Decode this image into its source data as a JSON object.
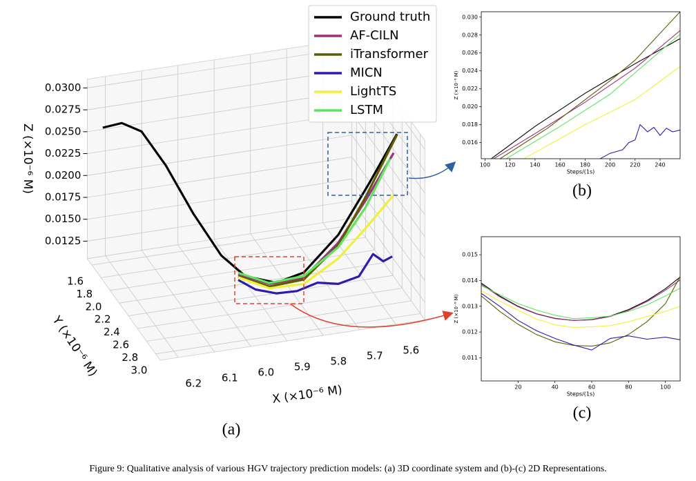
{
  "caption": "Figure 9: Qualitative analysis of various HGV trajectory prediction models: (a) 3D coordinate system and (b)-(c) 2D Representations.",
  "chart_data": [
    {
      "type": "line3d",
      "panel_label": "(a)",
      "xlabel": "X (×10⁻⁶ M)",
      "ylabel": "Y (×10⁻⁶ M)",
      "zlabel": "Z (×10⁻⁶ M)",
      "xlim": [
        5.52,
        6.25
      ],
      "ylim": [
        1.5,
        3.1
      ],
      "zlim": [
        0.0105,
        0.031
      ],
      "xticks": [
        5.6,
        5.7,
        5.8,
        5.9,
        {
          "value": 6.0,
          "label": "6.0"
        },
        6.1,
        6.2
      ],
      "yticks": [
        1.6,
        1.8,
        {
          "value": 2.0,
          "label": "2.0"
        },
        2.2,
        2.4,
        2.6,
        2.8,
        {
          "value": 3.0,
          "label": "3.0"
        }
      ],
      "zticks": [
        0.0125,
        {
          "value": 0.015,
          "label": "0.0150"
        },
        0.0175,
        {
          "value": 0.02,
          "label": "0.0200"
        },
        0.0225,
        {
          "value": 0.025,
          "label": "0.0250"
        },
        0.0275,
        {
          "value": 0.03,
          "label": "0.0300"
        }
      ],
      "grid": true,
      "legend": "upper right",
      "series": [
        {
          "name": "Ground truth",
          "color": "#000000",
          "x": [
            6.22,
            6.18,
            6.138,
            6.096,
            6.045,
            5.994,
            5.94,
            5.867,
            5.791,
            5.696,
            5.61,
            5.534
          ],
          "y": [
            1.6,
            1.7,
            1.8,
            2.0,
            2.2,
            2.4,
            2.5,
            2.6,
            2.6,
            2.6,
            2.6,
            2.6
          ],
          "z": [
            0.026,
            0.027,
            0.0265,
            0.0238,
            0.0194,
            0.0158,
            0.0138,
            0.0133,
            0.014,
            0.0177,
            0.0231,
            0.0282
          ]
        },
        {
          "name": "AF-CILN",
          "color": "#a0307f",
          "x": [
            5.972,
            5.886,
            5.791,
            5.696,
            5.62,
            5.543
          ],
          "y": [
            2.6,
            2.6,
            2.6,
            2.6,
            2.6,
            2.6
          ],
          "z": [
            0.0149,
            0.0133,
            0.0134,
            0.0168,
            0.0212,
            0.0261
          ]
        },
        {
          "name": "iTransformer",
          "color": "#5c5c00",
          "x": [
            5.972,
            5.886,
            5.791,
            5.696,
            5.62,
            5.534
          ],
          "y": [
            2.6,
            2.6,
            2.6,
            2.6,
            2.6,
            2.6
          ],
          "z": [
            0.0147,
            0.013,
            0.0132,
            0.0165,
            0.0216,
            0.0281
          ]
        },
        {
          "name": "MICN",
          "color": "#2d1bb0",
          "x": [
            5.972,
            5.924,
            5.867,
            5.81,
            5.753,
            5.696,
            5.639,
            5.6,
            5.572,
            5.547
          ],
          "y": [
            2.6,
            2.6,
            2.6,
            2.6,
            2.6,
            2.6,
            2.6,
            2.6,
            2.6,
            2.6
          ],
          "z": [
            0.0143,
            0.0129,
            0.0121,
            0.012,
            0.0126,
            0.0121,
            0.0126,
            0.0149,
            0.0139,
            0.0143
          ]
        },
        {
          "name": "LightTS",
          "color": "#f0f03a",
          "x": [
            5.972,
            5.886,
            5.791,
            5.696,
            5.62,
            5.543
          ],
          "y": [
            2.6,
            2.6,
            2.6,
            2.6,
            2.6,
            2.6
          ],
          "z": [
            0.0146,
            0.0128,
            0.0127,
            0.015,
            0.018,
            0.0213
          ]
        },
        {
          "name": "LSTM",
          "color": "#5ce65c",
          "x": [
            5.972,
            5.886,
            5.791,
            5.696,
            5.62,
            5.553
          ],
          "y": [
            2.6,
            2.6,
            2.6,
            2.6,
            2.6,
            2.6
          ],
          "z": [
            0.0151,
            0.0134,
            0.0136,
            0.0163,
            0.0204,
            0.0255
          ]
        }
      ]
    },
    {
      "type": "line",
      "panel_label": "(b)",
      "xlabel": "Steps/(1s)",
      "ylabel": "Z (×10⁻⁶ M)",
      "xlim": [
        97,
        256
      ],
      "ylim": [
        0.0142,
        0.0306
      ],
      "xticks": [
        100,
        120,
        140,
        160,
        180,
        200,
        220,
        240
      ],
      "yticks": [
        0.016,
        0.018,
        {
          "value": 0.02,
          "label": "0.020"
        },
        0.022,
        0.024,
        0.026,
        0.028,
        {
          "value": 0.03,
          "label": "0.030"
        }
      ],
      "series": [
        {
          "name": "Ground truth",
          "color": "#000000",
          "x": [
            105,
            140,
            180,
            220,
            256
          ],
          "values": [
            0.0142,
            0.0178,
            0.0215,
            0.0248,
            0.0276
          ]
        },
        {
          "name": "AF-CILN",
          "color": "#a0307f",
          "x": [
            107,
            140,
            180,
            220,
            256
          ],
          "values": [
            0.0142,
            0.017,
            0.0205,
            0.0243,
            0.0285
          ]
        },
        {
          "name": "iTransformer",
          "color": "#5c5c00",
          "x": [
            112,
            150,
            200,
            220,
            256
          ],
          "values": [
            0.0142,
            0.0176,
            0.0229,
            0.0252,
            0.0306
          ]
        },
        {
          "name": "MICN",
          "color": "#2d1bb0",
          "x": [
            192,
            200,
            210,
            215,
            220,
            224,
            230,
            235,
            240,
            245,
            250,
            256
          ],
          "values": [
            0.0142,
            0.0148,
            0.0152,
            0.016,
            0.0163,
            0.018,
            0.0172,
            0.0177,
            0.0168,
            0.0176,
            0.0172,
            0.0174
          ]
        },
        {
          "name": "LightTS",
          "color": "#f0f03a",
          "x": [
            131,
            180,
            220,
            256
          ],
          "values": [
            0.0142,
            0.018,
            0.0208,
            0.0245
          ]
        },
        {
          "name": "LSTM",
          "color": "#5ce65c",
          "x": [
            117,
            160,
            200,
            256
          ],
          "values": [
            0.0142,
            0.0178,
            0.0214,
            0.0281
          ]
        }
      ]
    },
    {
      "type": "line",
      "panel_label": "(c)",
      "xlabel": "Steps/(1s)",
      "ylabel": "Z (×10⁻⁶ M)",
      "xlim": [
        0,
        108
      ],
      "ylim": [
        0.0101,
        0.0157
      ],
      "xticks": [
        20,
        40,
        60,
        80,
        100
      ],
      "yticks": [
        0.011,
        0.012,
        0.013,
        0.014,
        0.015
      ],
      "series": [
        {
          "name": "Ground truth",
          "color": "#000000",
          "x": [
            0,
            10,
            20,
            30,
            40,
            50,
            60,
            70,
            80,
            90,
            100,
            108
          ],
          "values": [
            0.0139,
            0.0134,
            0.013,
            0.01271,
            0.01253,
            0.01245,
            0.01248,
            0.01262,
            0.01287,
            0.01322,
            0.01368,
            0.01413
          ]
        },
        {
          "name": "AF-CILN",
          "color": "#a0307f",
          "x": [
            0,
            10,
            20,
            30,
            40,
            50,
            60,
            70,
            80,
            90,
            100,
            108
          ],
          "values": [
            0.01385,
            0.01337,
            0.01298,
            0.0127,
            0.01252,
            0.01245,
            0.01247,
            0.0126,
            0.01284,
            0.01318,
            0.01362,
            0.01402
          ]
        },
        {
          "name": "iTransformer",
          "color": "#5c5c00",
          "x": [
            0,
            10,
            20,
            30,
            40,
            50,
            60,
            70,
            80,
            90,
            100,
            108
          ],
          "values": [
            0.0134,
            0.0128,
            0.0123,
            0.0119,
            0.01162,
            0.01148,
            0.01145,
            0.01158,
            0.0119,
            0.0124,
            0.0131,
            0.01415
          ]
        },
        {
          "name": "MICN",
          "color": "#2d1bb0",
          "x": [
            0,
            10,
            20,
            30,
            40,
            50,
            60,
            70,
            80,
            90,
            100,
            108
          ],
          "values": [
            0.0135,
            0.013,
            0.01245,
            0.01205,
            0.01175,
            0.0115,
            0.0113,
            0.01175,
            0.01185,
            0.01172,
            0.0118,
            0.0117
          ]
        },
        {
          "name": "LightTS",
          "color": "#f0f03a",
          "x": [
            0,
            10,
            20,
            30,
            40,
            50,
            60,
            70,
            80,
            90,
            100,
            108
          ],
          "values": [
            0.0136,
            0.0132,
            0.01285,
            0.0125,
            0.01228,
            0.01218,
            0.0122,
            0.01225,
            0.0124,
            0.0126,
            0.0128,
            0.013
          ]
        },
        {
          "name": "LSTM",
          "color": "#5ce65c",
          "x": [
            0,
            10,
            20,
            30,
            40,
            50,
            60,
            70,
            80,
            90,
            100,
            108
          ],
          "values": [
            0.0138,
            0.01345,
            0.0131,
            0.01285,
            0.01265,
            0.01252,
            0.01255,
            0.01262,
            0.0128,
            0.01305,
            0.0134,
            0.0137
          ]
        }
      ]
    }
  ]
}
